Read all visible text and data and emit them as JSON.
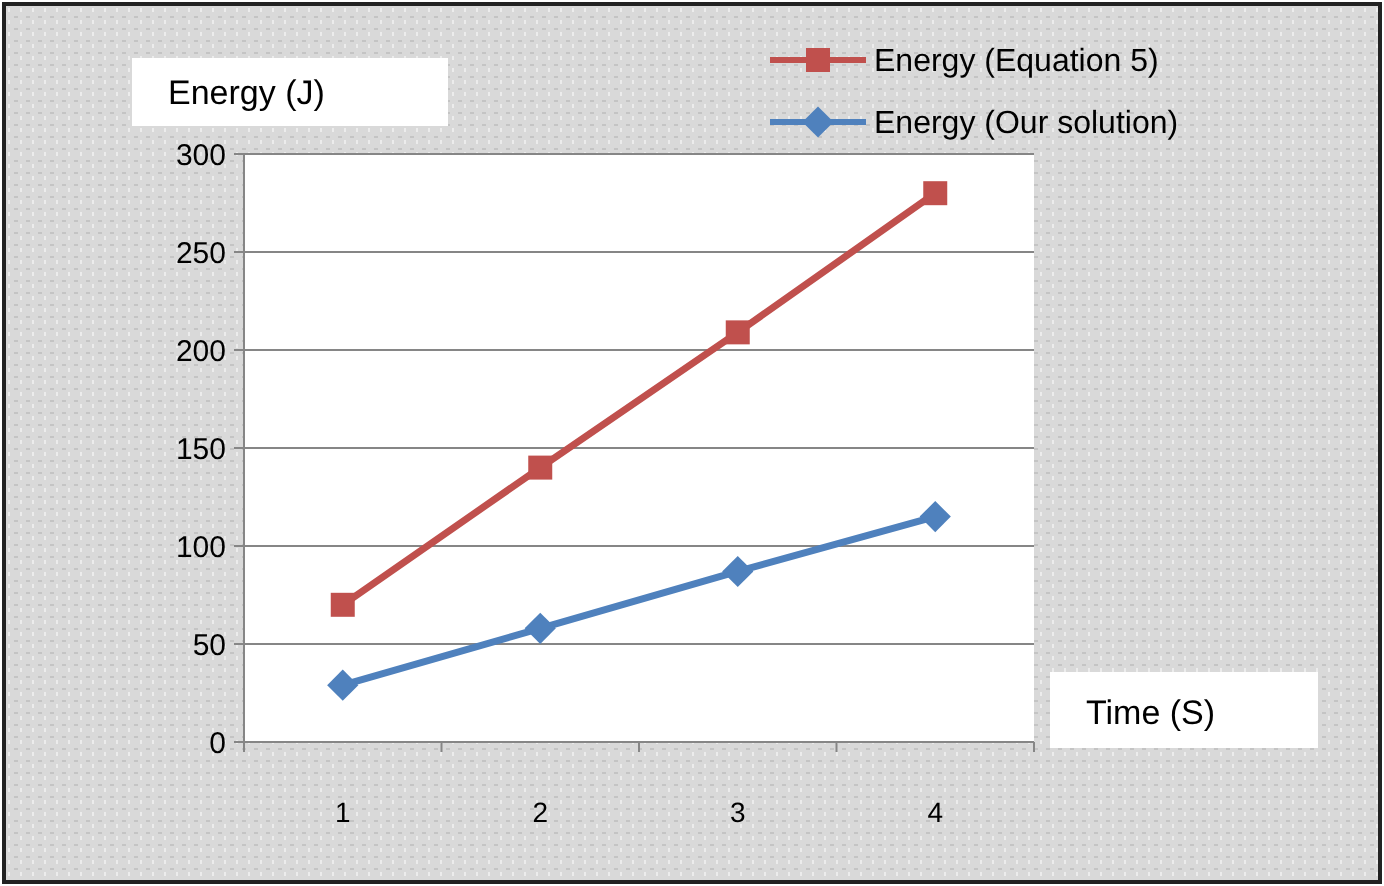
{
  "chart_data": {
    "type": "line",
    "xlabel": "Time (S)",
    "ylabel": "Energy (J)",
    "categories": [
      "1",
      "2",
      "3",
      "4"
    ],
    "series": [
      {
        "name": "Energy (Equation  5)",
        "color": "#c0504d",
        "marker": "square",
        "values": [
          70,
          140,
          209,
          280
        ]
      },
      {
        "name": "Energy (Our solution)",
        "color": "#4f81bd",
        "marker": "diamond",
        "values": [
          29,
          58,
          87,
          115
        ]
      }
    ],
    "ylim": [
      0,
      300
    ],
    "yticks": [
      0,
      50,
      100,
      150,
      200,
      250,
      300
    ],
    "grid": "y",
    "legend": "top right"
  }
}
